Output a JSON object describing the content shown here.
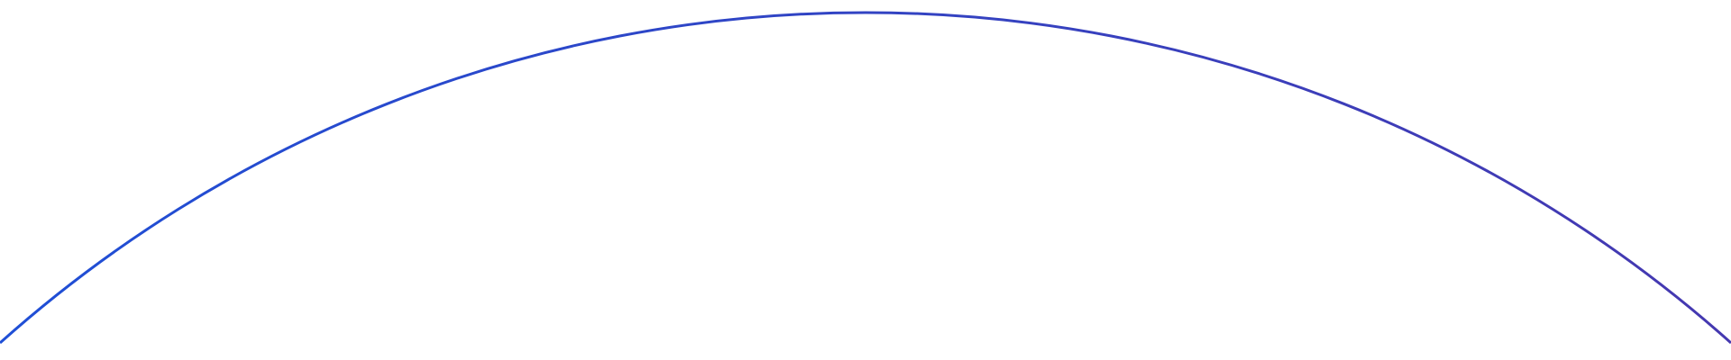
{
  "arc": {
    "color_start": "#1f4fd6",
    "color_end": "#4538b0"
  }
}
